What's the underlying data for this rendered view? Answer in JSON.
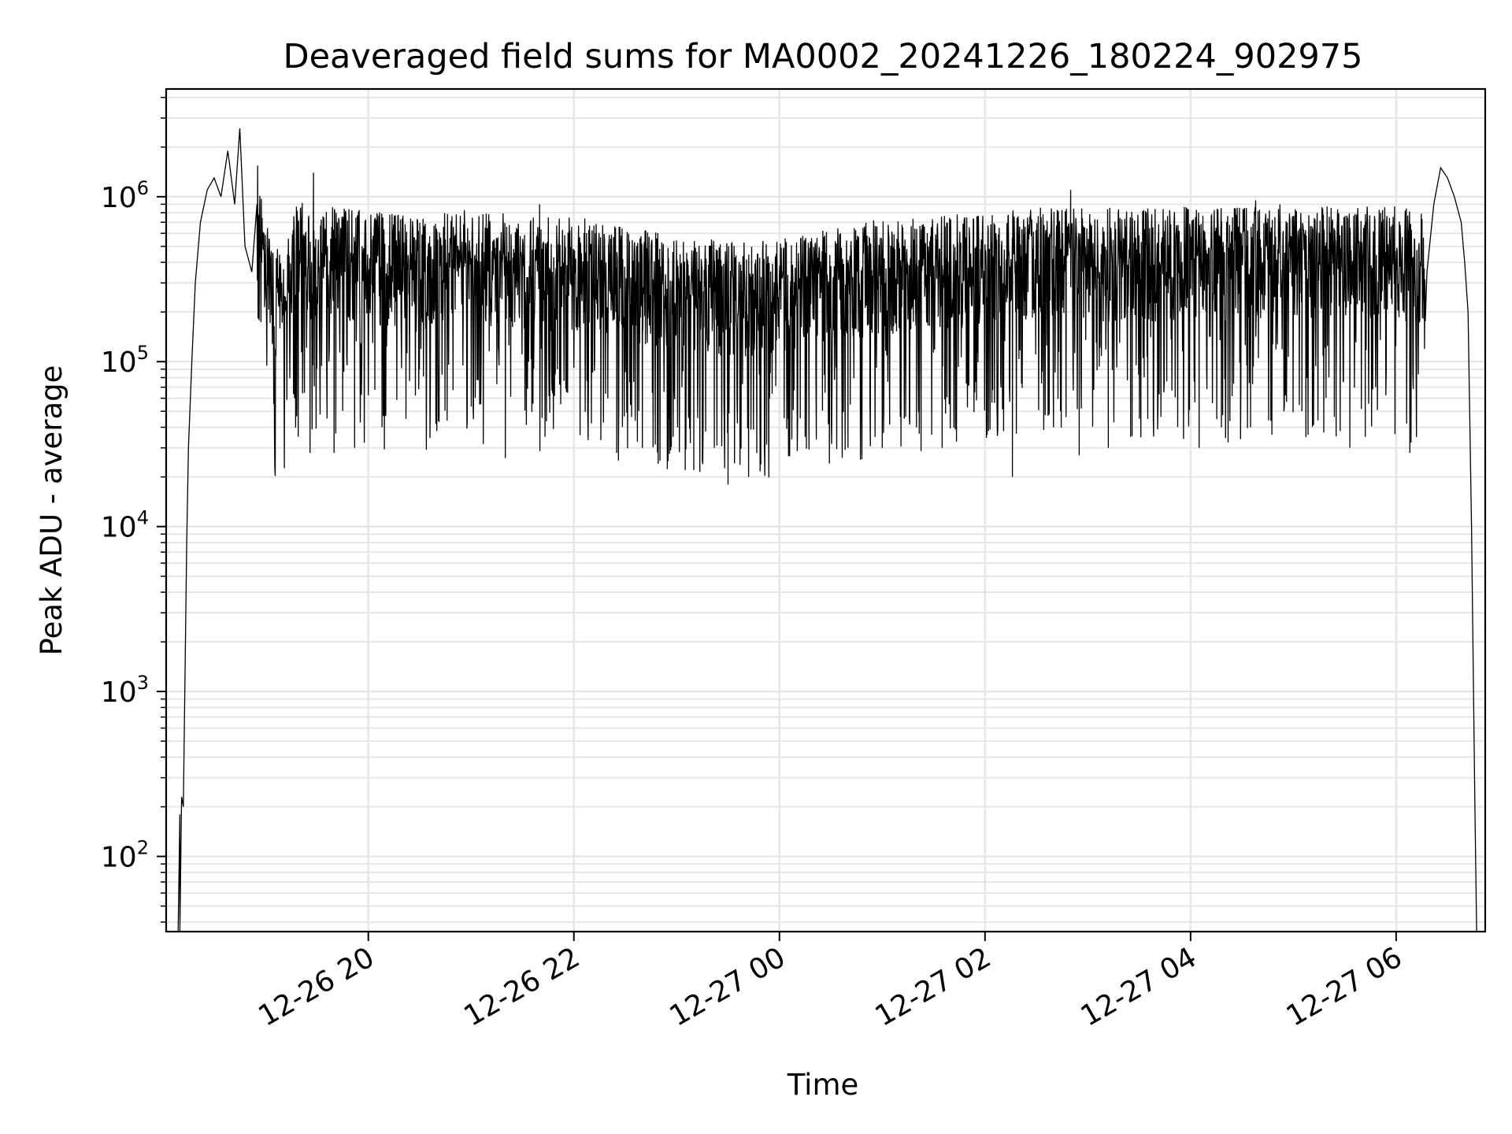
{
  "chart_data": {
    "type": "line",
    "title": "Deaveraged field sums for MA0002_20241226_180224_902975",
    "xlabel": "Time",
    "ylabel": "Peak ADU - average",
    "yscale": "log",
    "ylim": [
      35,
      4500000
    ],
    "xlim": [
      "2024-12-26 18:02",
      "2024-12-27 06:52"
    ],
    "x_ticks": [
      {
        "value": "2024-12-26 20:00",
        "label": "12-26 20"
      },
      {
        "value": "2024-12-26 22:00",
        "label": "12-26 22"
      },
      {
        "value": "2024-12-27 00:00",
        "label": "12-27 00"
      },
      {
        "value": "2024-12-27 02:00",
        "label": "12-27 02"
      },
      {
        "value": "2024-12-27 04:00",
        "label": "12-27 04"
      },
      {
        "value": "2024-12-27 06:00",
        "label": "12-27 06"
      }
    ],
    "y_ticks": [
      {
        "value": 100,
        "base": "10",
        "exp": "2"
      },
      {
        "value": 1000,
        "base": "10",
        "exp": "3"
      },
      {
        "value": 10000,
        "base": "10",
        "exp": "4"
      },
      {
        "value": 100000,
        "base": "10",
        "exp": "5"
      },
      {
        "value": 1000000,
        "base": "10",
        "exp": "6"
      }
    ],
    "grid": true,
    "line_color": "#000000",
    "grid_color": "#e6e6e6",
    "series": [
      {
        "points": [
          [
            "2024-12-26 18:09",
            35
          ],
          [
            "2024-12-26 18:10",
            180
          ],
          [
            "2024-12-26 18:10",
            35
          ],
          [
            "2024-12-26 18:11",
            230
          ],
          [
            "2024-12-26 18:12",
            200
          ],
          [
            "2024-12-26 18:13",
            1200
          ],
          [
            "2024-12-26 18:14",
            8000
          ],
          [
            "2024-12-26 18:15",
            30000
          ],
          [
            "2024-12-26 18:17",
            100000
          ],
          [
            "2024-12-26 18:19",
            300000
          ],
          [
            "2024-12-26 18:22",
            700000
          ],
          [
            "2024-12-26 18:26",
            1100000
          ],
          [
            "2024-12-26 18:30",
            1300000
          ],
          [
            "2024-12-26 18:34",
            1000000
          ],
          [
            "2024-12-26 18:38",
            1900000
          ],
          [
            "2024-12-26 18:42",
            900000
          ],
          [
            "2024-12-26 18:45",
            2600000
          ],
          [
            "2024-12-26 18:48",
            500000
          ],
          [
            "2024-12-26 18:52",
            350000
          ],
          [
            "2024-12-26 18:56",
            800000
          ],
          [
            "2024-12-26 19:00",
            300000
          ],
          [
            "2024-12-26 19:10",
            200000
          ],
          [
            "2024-12-26 19:20",
            450000
          ],
          [
            "2024-12-26 19:30",
            320000
          ],
          [
            "2024-12-26 19:40",
            400000
          ],
          [
            "2024-12-26 20:00",
            360000
          ],
          [
            "2024-12-26 20:30",
            330000
          ],
          [
            "2024-12-26 21:00",
            370000
          ],
          [
            "2024-12-26 21:30",
            340000
          ],
          [
            "2024-12-26 22:00",
            330000
          ],
          [
            "2024-12-26 22:30",
            290000
          ],
          [
            "2024-12-26 23:00",
            260000
          ],
          [
            "2024-12-26 23:30",
            230000
          ],
          [
            "2024-12-27 00:00",
            240000
          ],
          [
            "2024-12-27 00:30",
            280000
          ],
          [
            "2024-12-27 01:00",
            320000
          ],
          [
            "2024-12-27 01:30",
            330000
          ],
          [
            "2024-12-27 02:00",
            360000
          ],
          [
            "2024-12-27 02:30",
            380000
          ],
          [
            "2024-12-27 03:00",
            370000
          ],
          [
            "2024-12-27 03:30",
            380000
          ],
          [
            "2024-12-27 04:00",
            390000
          ],
          [
            "2024-12-27 04:30",
            380000
          ],
          [
            "2024-12-27 05:00",
            400000
          ],
          [
            "2024-12-27 05:30",
            380000
          ],
          [
            "2024-12-27 06:00",
            400000
          ],
          [
            "2024-12-27 06:18",
            350000
          ],
          [
            "2024-12-27 06:22",
            900000
          ],
          [
            "2024-12-27 06:26",
            1500000
          ],
          [
            "2024-12-27 06:30",
            1300000
          ],
          [
            "2024-12-27 06:34",
            1000000
          ],
          [
            "2024-12-27 06:38",
            700000
          ],
          [
            "2024-12-27 06:40",
            400000
          ],
          [
            "2024-12-27 06:42",
            200000
          ],
          [
            "2024-12-27 06:44",
            10000
          ],
          [
            "2024-12-27 06:46",
            200
          ],
          [
            "2024-12-27 06:47",
            35
          ]
        ],
        "noise_band": {
          "from": "2024-12-26 18:55",
          "to": "2024-12-27 06:17",
          "up_factor_max": 2.3,
          "down_factor_max": 12
        },
        "spikes": [
          [
            "2024-12-26 19:17",
            60000
          ],
          [
            "2024-12-26 19:26",
            28000
          ],
          [
            "2024-12-26 19:28",
            1400000
          ],
          [
            "2024-12-26 19:40",
            28000
          ],
          [
            "2024-12-26 19:52",
            30000
          ],
          [
            "2024-12-26 20:08",
            40000
          ],
          [
            "2024-12-26 20:22",
            45000
          ],
          [
            "2024-12-26 20:40",
            38000
          ],
          [
            "2024-12-26 21:05",
            55000
          ],
          [
            "2024-12-26 21:20",
            26000
          ],
          [
            "2024-12-26 21:40",
            900000
          ],
          [
            "2024-12-26 22:25",
            28000
          ],
          [
            "2024-12-26 22:40",
            30000
          ],
          [
            "2024-12-26 22:55",
            25000
          ],
          [
            "2024-12-26 23:05",
            22000
          ],
          [
            "2024-12-26 23:10",
            22000
          ],
          [
            "2024-12-26 23:22",
            30000
          ],
          [
            "2024-12-26 23:30",
            18000
          ],
          [
            "2024-12-26 23:42",
            20000
          ],
          [
            "2024-12-27 00:05",
            45000
          ],
          [
            "2024-12-27 00:15",
            35000
          ],
          [
            "2024-12-27 00:40",
            30000
          ],
          [
            "2024-12-27 01:00",
            30000
          ],
          [
            "2024-12-27 01:20",
            40000
          ],
          [
            "2024-12-27 01:35",
            30000
          ],
          [
            "2024-12-27 02:02",
            38000
          ],
          [
            "2024-12-27 02:16",
            20000
          ],
          [
            "2024-12-27 02:40",
            40000
          ],
          [
            "2024-12-27 02:50",
            1100000
          ],
          [
            "2024-12-27 02:55",
            27000
          ],
          [
            "2024-12-27 03:12",
            30000
          ],
          [
            "2024-12-27 03:25",
            35000
          ],
          [
            "2024-12-27 03:35",
            45000
          ],
          [
            "2024-12-27 04:05",
            30000
          ],
          [
            "2024-12-27 04:18",
            40000
          ],
          [
            "2024-12-27 04:35",
            40000
          ],
          [
            "2024-12-27 04:38",
            950000
          ],
          [
            "2024-12-27 05:05",
            50000
          ],
          [
            "2024-12-27 05:25",
            75000
          ],
          [
            "2024-12-27 05:33",
            30000
          ],
          [
            "2024-12-27 05:42",
            35000
          ],
          [
            "2024-12-27 06:08",
            28000
          ]
        ]
      }
    ]
  }
}
